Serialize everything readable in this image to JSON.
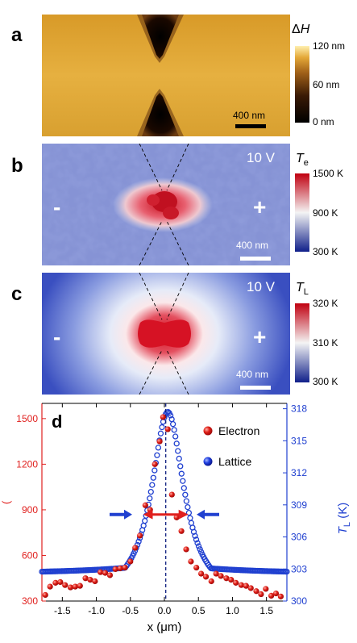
{
  "panel_a": {
    "label": "a",
    "colorbar": {
      "title_symbol": "Δ",
      "title_var": "H",
      "ticks": [
        "120 nm",
        "60 nm",
        "0 nm"
      ]
    },
    "scalebar": "400 nm"
  },
  "panel_b": {
    "label": "b",
    "voltage": "10 V",
    "left_sign": "-",
    "right_sign": "+",
    "colorbar": {
      "title_var": "T",
      "title_sub": "e",
      "ticks": [
        "1500 K",
        "900 K",
        "300 K"
      ]
    },
    "scalebar": "400 nm"
  },
  "panel_c": {
    "label": "c",
    "voltage": "10 V",
    "left_sign": "-",
    "right_sign": "+",
    "colorbar": {
      "title_var": "T",
      "title_sub": "L",
      "ticks": [
        "320 K",
        "310 K",
        "300 K"
      ]
    },
    "scalebar": "400 nm"
  },
  "colors": {
    "gold": "#e0a020",
    "electron": "#e0201e",
    "lattice": "#2040d0",
    "thermo_red": "#d01020",
    "thermo_blue": "#1030a0"
  },
  "chart_data": {
    "type": "scatter",
    "panel_label": "d",
    "xlabel": "x (μm)",
    "ylabel_left": "(",
    "ylabel_right_var": "T",
    "ylabel_right_sub": "L",
    "ylabel_right_unit": " (K)",
    "xlim": [
      -1.8,
      1.8
    ],
    "ylim_left": [
      300,
      1600
    ],
    "ylim_right": [
      300,
      318.5
    ],
    "x_ticks": [
      -1.5,
      -1.0,
      -0.5,
      0.0,
      0.5,
      1.0,
      1.5
    ],
    "x_tick_labels": [
      "-1.5",
      "-1.0",
      "-0.5",
      "0.0",
      "0.5",
      "1.0",
      "1.5"
    ],
    "left_ticks": [
      300,
      600,
      900,
      1200,
      1500
    ],
    "right_ticks": [
      300,
      303,
      306,
      309,
      312,
      315,
      318
    ],
    "legend": [
      "Electron",
      "Lattice"
    ],
    "series": [
      {
        "name": "Electron",
        "axis": "left",
        "x": [
          -1.75,
          -1.68,
          -1.6,
          -1.53,
          -1.46,
          -1.38,
          -1.31,
          -1.24,
          -1.16,
          -1.09,
          -1.02,
          -0.94,
          -0.87,
          -0.8,
          -0.72,
          -0.65,
          -0.58,
          -0.5,
          -0.43,
          -0.36,
          -0.28,
          -0.21,
          -0.14,
          -0.07,
          -0.02,
          0.05,
          0.11,
          0.18,
          0.25,
          0.32,
          0.39,
          0.47,
          0.54,
          0.61,
          0.69,
          0.76,
          0.83,
          0.91,
          0.98,
          1.05,
          1.13,
          1.2,
          1.27,
          1.35,
          1.42,
          1.49,
          1.57,
          1.64,
          1.71
        ],
        "y": [
          340,
          395,
          420,
          425,
          405,
          390,
          395,
          400,
          450,
          440,
          430,
          490,
          485,
          470,
          510,
          515,
          520,
          560,
          650,
          730,
          930,
          900,
          1200,
          1350,
          1510,
          1430,
          1000,
          850,
          760,
          640,
          560,
          520,
          480,
          460,
          430,
          480,
          465,
          450,
          440,
          420,
          405,
          400,
          385,
          365,
          345,
          380,
          335,
          350,
          330
        ]
      },
      {
        "name": "Lattice",
        "axis": "right",
        "center": 0.05,
        "peak": 317.7,
        "baseline": 300.0,
        "model": "lorentzian",
        "hwhm_um": 0.29,
        "x_samples": [
          -1.8,
          -1.5,
          -1.2,
          -0.9,
          -0.6,
          -0.4,
          -0.2,
          0.0,
          0.05,
          0.1,
          0.3,
          0.5,
          0.7,
          1.0,
          1.3,
          1.6,
          1.8
        ],
        "y_samples": [
          303.5,
          303.5,
          304.2,
          305.7,
          308.1,
          310.8,
          315.0,
          317.6,
          317.7,
          317.6,
          313.8,
          309.4,
          307.0,
          305.2,
          304.2,
          303.4,
          302.8
        ]
      }
    ]
  }
}
